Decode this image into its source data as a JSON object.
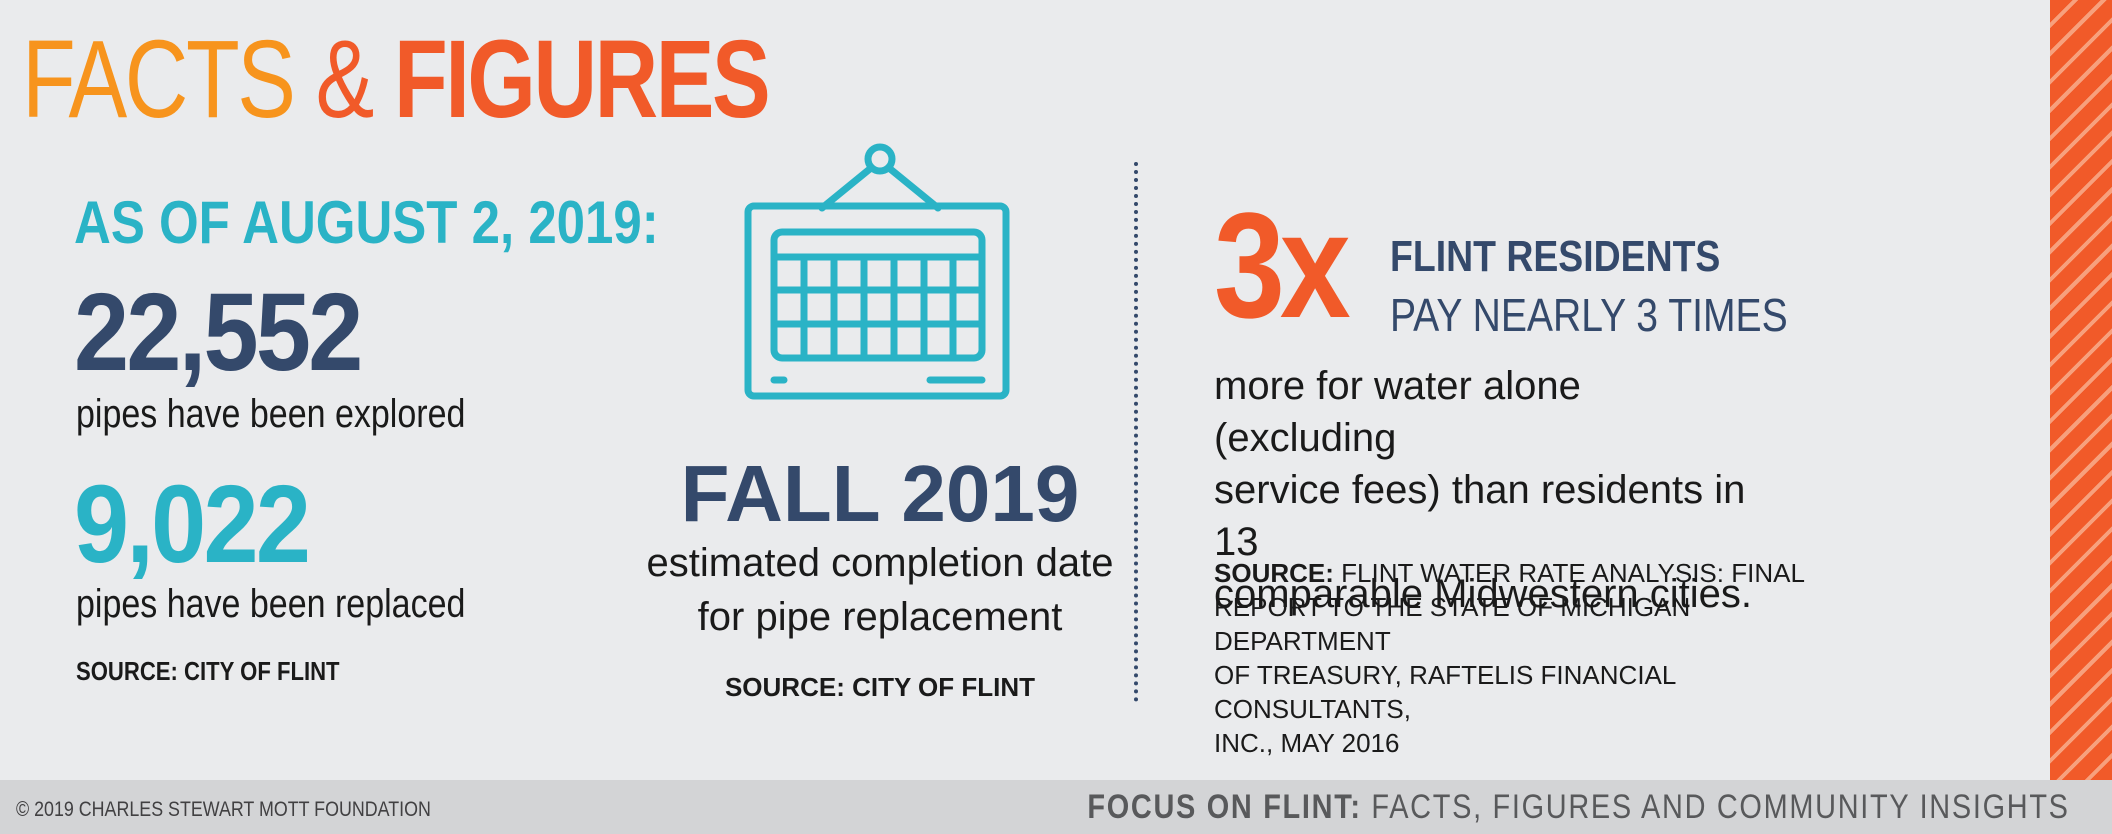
{
  "title": {
    "word1": "FACTS",
    "amp": "&",
    "word2": "FIGURES"
  },
  "left": {
    "as_of": "AS OF AUGUST 2, 2019:",
    "stat1_value": "22,552",
    "stat1_label": "pipes have been explored",
    "stat2_value": "9,022",
    "stat2_label": "pipes have been replaced",
    "source": "SOURCE: CITY OF FLINT"
  },
  "middle": {
    "icon": "calendar-icon",
    "headline": "FALL 2019",
    "sub_line1": "estimated completion date",
    "sub_line2": "for pipe replacement",
    "source": "SOURCE: CITY OF FLINT"
  },
  "right": {
    "multiplier": "3x",
    "heading": "FLINT RESIDENTS",
    "subheading": "PAY NEARLY 3 TIMES",
    "body_line1": "more for water alone (excluding",
    "body_line2": "service fees) than residents in 13",
    "body_line3": "comparable Midwestern cities.",
    "source_label": "SOURCE:",
    "source_line1": "FLINT WATER RATE ANALYSIS: FINAL",
    "source_line2": "REPORT TO THE STATE OF MICHIGAN DEPARTMENT",
    "source_line3": "OF TREASURY, RAFTELIS FINANCIAL CONSULTANTS,",
    "source_line4": "INC., MAY 2016"
  },
  "footer": {
    "copyright": "© 2019 CHARLES STEWART MOTT FOUNDATION",
    "series_bold": "FOCUS ON FLINT:",
    "series_rest": "FACTS, FIGURES AND COMMUNITY INSIGHTS"
  },
  "colors": {
    "orange_light": "#f7941d",
    "orange": "#f15a29",
    "teal": "#2ab3c6",
    "navy": "#34496b",
    "background": "#eaebed",
    "footer_bg": "#d3d4d6"
  }
}
